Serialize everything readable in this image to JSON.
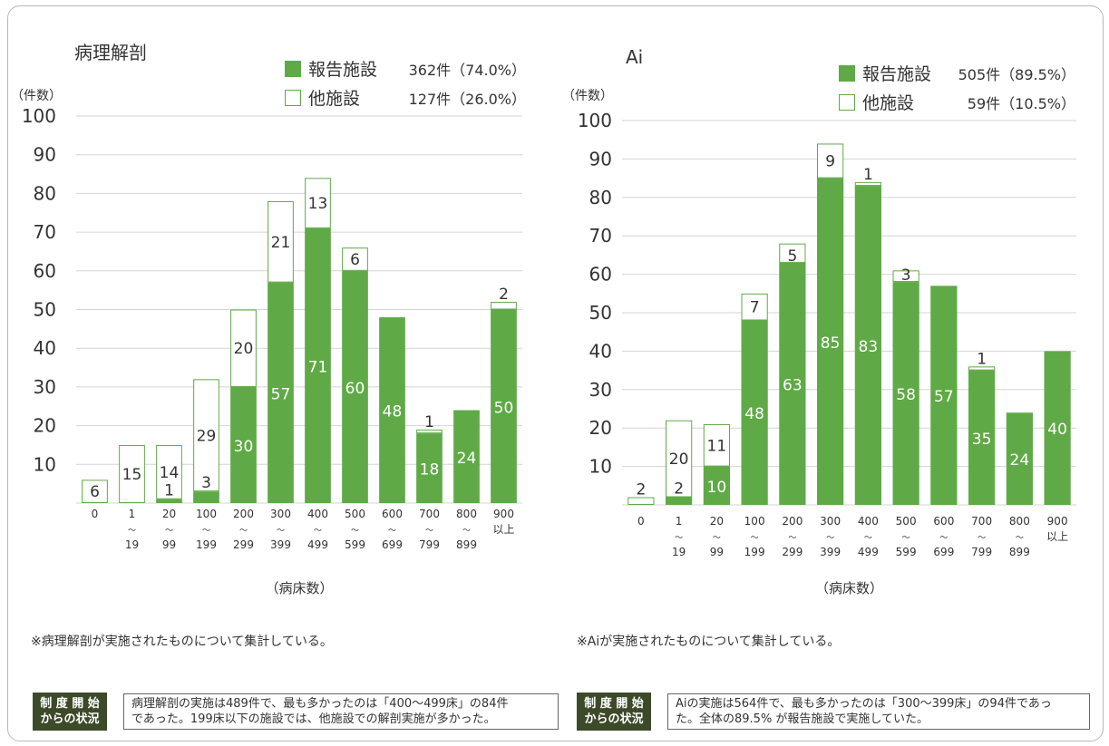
{
  "chart_data": [
    {
      "type": "bar",
      "stacked": true,
      "title": "病理解剖",
      "ylabel": "（件数）",
      "xlabel": "（病床数）",
      "ylim": [
        0,
        100
      ],
      "yticks": [
        10,
        20,
        30,
        40,
        50,
        60,
        70,
        80,
        90,
        100
      ],
      "grid": true,
      "legend_position": "top-right",
      "categories": [
        [
          "0"
        ],
        [
          "1",
          "〜",
          "19"
        ],
        [
          "20",
          "〜",
          "99"
        ],
        [
          "100",
          "〜",
          "199"
        ],
        [
          "200",
          "〜",
          "299"
        ],
        [
          "300",
          "〜",
          "399"
        ],
        [
          "400",
          "〜",
          "499"
        ],
        [
          "500",
          "〜",
          "599"
        ],
        [
          "600",
          "〜",
          "699"
        ],
        [
          "700",
          "〜",
          "799"
        ],
        [
          "800",
          "〜",
          "899"
        ],
        [
          "900",
          "以上"
        ]
      ],
      "series": [
        {
          "name": "報告施設",
          "color": "#5faa46",
          "values": [
            0,
            0,
            1,
            3,
            30,
            57,
            71,
            60,
            48,
            18,
            24,
            50
          ],
          "labels": [
            "",
            "",
            "1",
            "3",
            "30",
            "57",
            "71",
            "60",
            "48",
            "18",
            "24",
            "50"
          ]
        },
        {
          "name": "他施設",
          "color": "#ffffff",
          "values": [
            6,
            15,
            14,
            29,
            20,
            21,
            13,
            6,
            0,
            1,
            0,
            2
          ],
          "labels": [
            "6",
            "15",
            "14",
            "29",
            "20",
            "21",
            "13",
            "6",
            "",
            "1",
            "",
            "2"
          ]
        }
      ],
      "legend": [
        {
          "name": "報告施設",
          "count": "362件（74.0%）"
        },
        {
          "name": "他施設",
          "count": "127件（26.0%）"
        }
      ]
    },
    {
      "type": "bar",
      "stacked": true,
      "title": "Ai",
      "ylabel": "（件数）",
      "xlabel": "（病床数）",
      "ylim": [
        0,
        100
      ],
      "yticks": [
        10,
        20,
        30,
        40,
        50,
        60,
        70,
        80,
        90,
        100
      ],
      "grid": true,
      "legend_position": "top-right",
      "categories": [
        [
          "0"
        ],
        [
          "1",
          "〜",
          "19"
        ],
        [
          "20",
          "〜",
          "99"
        ],
        [
          "100",
          "〜",
          "199"
        ],
        [
          "200",
          "〜",
          "299"
        ],
        [
          "300",
          "〜",
          "399"
        ],
        [
          "400",
          "〜",
          "499"
        ],
        [
          "500",
          "〜",
          "599"
        ],
        [
          "600",
          "〜",
          "699"
        ],
        [
          "700",
          "〜",
          "799"
        ],
        [
          "800",
          "〜",
          "899"
        ],
        [
          "900",
          "以上"
        ]
      ],
      "series": [
        {
          "name": "報告施設",
          "color": "#5faa46",
          "values": [
            0,
            2,
            10,
            48,
            63,
            85,
            83,
            58,
            57,
            35,
            24,
            40
          ],
          "labels": [
            "",
            "2",
            "10",
            "48",
            "63",
            "85",
            "83",
            "58",
            "57",
            "35",
            "24",
            "40"
          ]
        },
        {
          "name": "他施設",
          "color": "#ffffff",
          "values": [
            2,
            20,
            11,
            7,
            5,
            9,
            1,
            3,
            0,
            1,
            0,
            0
          ],
          "labels": [
            "2",
            "20",
            "11",
            "7",
            "5",
            "9",
            "1",
            "3",
            "",
            "1",
            "",
            ""
          ]
        }
      ],
      "legend": [
        {
          "name": "報告施設",
          "count": "505件（89.5%）"
        },
        {
          "name": "他施設",
          "count": "59件（10.5%）"
        }
      ]
    }
  ],
  "notes": {
    "left": "※病理解剖が実施されたものについて集計している。",
    "right": "※Aiが実施されたものについて集計している。"
  },
  "badges": {
    "left": {
      "line1": "制 度 開 始",
      "line2": "からの状況"
    },
    "right": {
      "line1": "制 度 開 始",
      "line2": "からの状況"
    }
  },
  "summaries": {
    "left": "病理解剖の実施は489件で、最も多かったのは「400～499床」の84件\nであった。199床以下の施設では、他施設での解剖実施が多かった。",
    "right": "Aiの実施は564件で、最も多かったのは「300～399床」の94件であっ\nた。全体の89.5% が報告施設で実施していた。"
  },
  "colors": {
    "green": "#5faa46",
    "grid": "#d4d4d4",
    "badge_bg": "#3d4a2a"
  }
}
